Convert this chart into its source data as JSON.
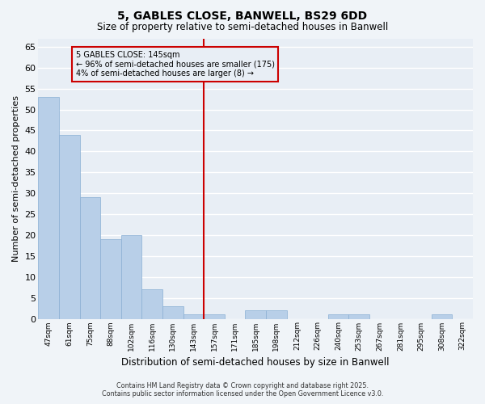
{
  "title": "5, GABLES CLOSE, BANWELL, BS29 6DD",
  "subtitle": "Size of property relative to semi-detached houses in Banwell",
  "xlabel": "Distribution of semi-detached houses by size in Banwell",
  "ylabel": "Number of semi-detached properties",
  "categories": [
    "47sqm",
    "61sqm",
    "75sqm",
    "88sqm",
    "102sqm",
    "116sqm",
    "130sqm",
    "143sqm",
    "157sqm",
    "171sqm",
    "185sqm",
    "198sqm",
    "212sqm",
    "226sqm",
    "240sqm",
    "253sqm",
    "267sqm",
    "281sqm",
    "295sqm",
    "308sqm",
    "322sqm"
  ],
  "values": [
    53,
    44,
    29,
    19,
    20,
    7,
    3,
    1,
    1,
    0,
    2,
    2,
    0,
    0,
    1,
    1,
    0,
    0,
    0,
    1,
    0
  ],
  "bar_color": "#b8cfe8",
  "bar_edge_color": "#8aafd4",
  "vline_index": 7,
  "vline_color": "#cc0000",
  "annotation_line1": "5 GABLES CLOSE: 145sqm",
  "annotation_line2": "← 96% of semi-detached houses are smaller (175)",
  "annotation_line3": "4% of semi-detached houses are larger (8) →",
  "annotation_box_edgecolor": "#cc0000",
  "ylim": [
    0,
    67
  ],
  "yticks": [
    0,
    5,
    10,
    15,
    20,
    25,
    30,
    35,
    40,
    45,
    50,
    55,
    60,
    65
  ],
  "plot_bg_color": "#e8eef5",
  "fig_bg_color": "#f0f4f8",
  "grid_color": "#ffffff",
  "footer_line1": "Contains HM Land Registry data © Crown copyright and database right 2025.",
  "footer_line2": "Contains public sector information licensed under the Open Government Licence v3.0."
}
